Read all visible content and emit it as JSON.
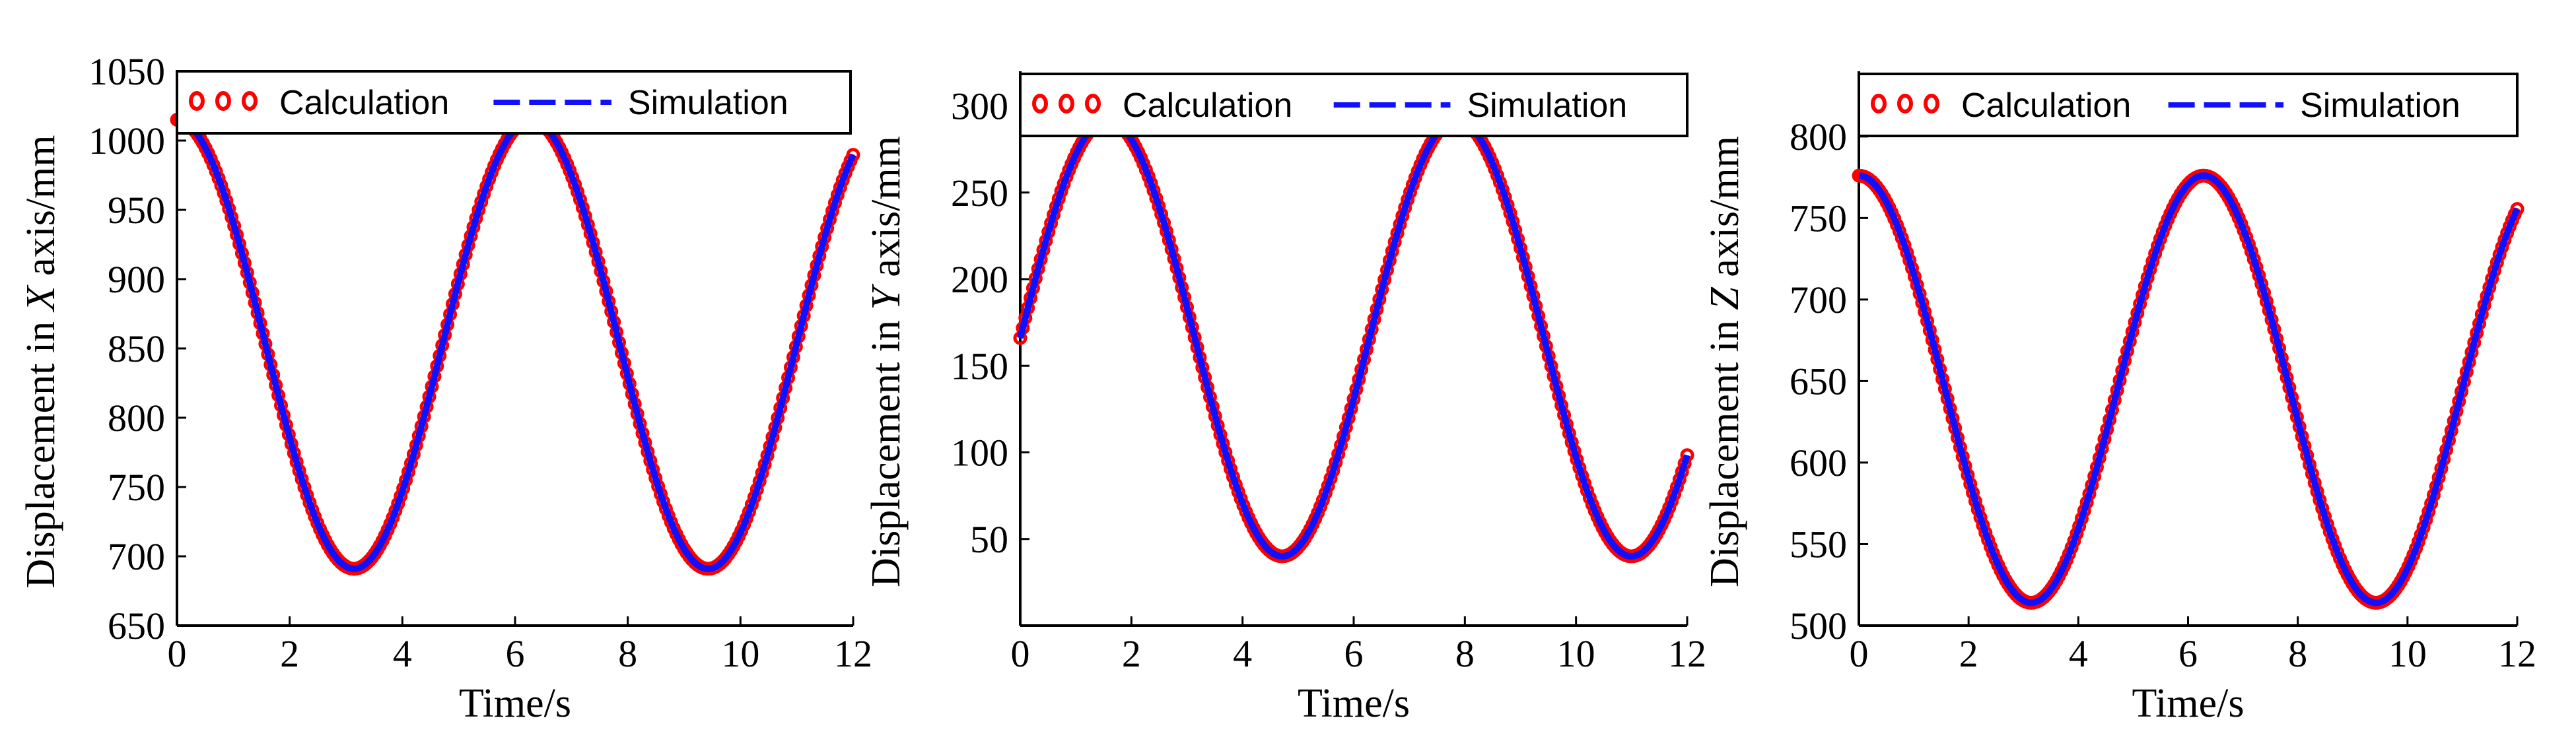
{
  "colors": {
    "calculation": "#ff0000",
    "simulation": "#1010ff",
    "axes": "#000000"
  },
  "chart_data": [
    {
      "type": "line",
      "series": [
        {
          "name": "Calculation",
          "style": "markers"
        },
        {
          "name": "Simulation",
          "style": "dashed-line"
        }
      ],
      "function": {
        "kind": "cosine",
        "center": 853,
        "amplitude": 162,
        "omega": 1,
        "phase": 0
      },
      "x_range": [
        0,
        12
      ],
      "xlim": [
        0,
        12
      ],
      "ylim": [
        650,
        1050
      ],
      "xticks": [
        0,
        2,
        4,
        6,
        8,
        10,
        12
      ],
      "yticks": [
        650,
        700,
        750,
        800,
        850,
        900,
        950,
        1000,
        1050
      ],
      "xlabel": "Time/s",
      "ylabel_prefix": "Displacement in ",
      "ylabel_var": "X",
      "ylabel_suffix": " axis/mm"
    },
    {
      "type": "line",
      "series": [
        {
          "name": "Calculation",
          "style": "markers"
        },
        {
          "name": "Simulation",
          "style": "dashed-line"
        }
      ],
      "function": {
        "kind": "sine",
        "center": 166,
        "amplitude": 126,
        "omega": 1,
        "phase": 0
      },
      "x_range": [
        0,
        12
      ],
      "xlim": [
        0,
        12
      ],
      "ylim": [
        0,
        320
      ],
      "xticks": [
        0,
        2,
        4,
        6,
        8,
        10,
        12
      ],
      "yticks": [
        50,
        100,
        150,
        200,
        250,
        300
      ],
      "xlabel": "Time/s",
      "ylabel_prefix": "Displacement in ",
      "ylabel_var": "Y",
      "ylabel_suffix": " axis/mm"
    },
    {
      "type": "line",
      "series": [
        {
          "name": "Calculation",
          "style": "markers"
        },
        {
          "name": "Simulation",
          "style": "dashed-line"
        }
      ],
      "function": {
        "kind": "cosine",
        "center": 645,
        "amplitude": 131,
        "omega": 1,
        "phase": 0
      },
      "x_range": [
        0,
        12
      ],
      "xlim": [
        0,
        12
      ],
      "ylim": [
        500,
        840
      ],
      "xticks": [
        0,
        2,
        4,
        6,
        8,
        10,
        12
      ],
      "yticks": [
        500,
        550,
        600,
        650,
        700,
        750,
        800
      ],
      "xlabel": "Time/s",
      "ylabel_prefix": "Displacement in ",
      "ylabel_var": "Z",
      "ylabel_suffix": " axis/mm"
    }
  ]
}
